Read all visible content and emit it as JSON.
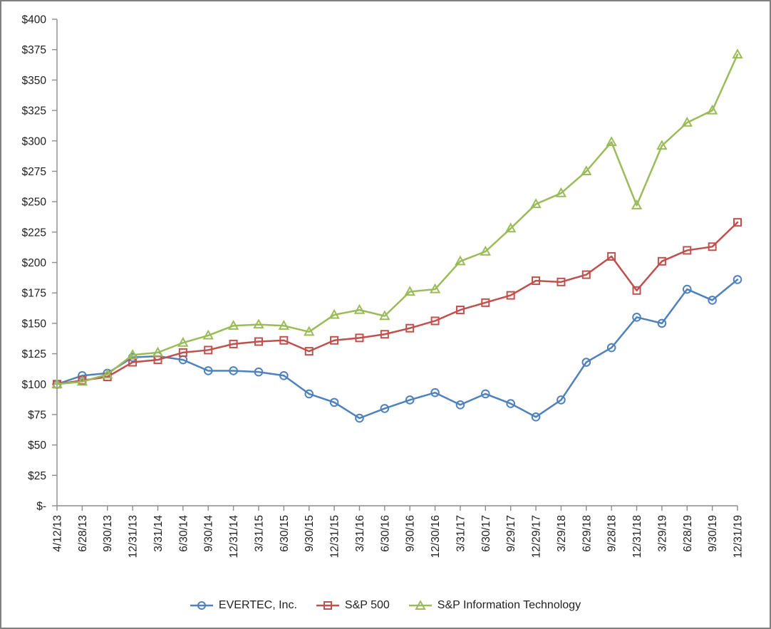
{
  "chart_data": {
    "type": "line",
    "title": "",
    "legend_position": "bottom",
    "grid": false,
    "x_labels": [
      "4/12/13",
      "6/28/13",
      "9/30/13",
      "12/31/13",
      "3/31/14",
      "6/30/14",
      "9/30/14",
      "12/31/14",
      "3/31/15",
      "6/30/15",
      "9/30/15",
      "12/31/15",
      "3/31/16",
      "6/30/16",
      "9/30/16",
      "12/30/16",
      "3/31/17",
      "6/30/17",
      "9/29/17",
      "12/29/17",
      "3/29/18",
      "6/29/18",
      "9/28/18",
      "12/31/18",
      "3/29/19",
      "6/28/19",
      "9/30/19",
      "12/31/19"
    ],
    "y_axis": {
      "min": 0,
      "max": 400,
      "step": 25,
      "tick_labels": [
        "$-",
        "$25",
        "$50",
        "$75",
        "$100",
        "$125",
        "$150",
        "$175",
        "$200",
        "$225",
        "$250",
        "$275",
        "$300",
        "$325",
        "$350",
        "$375",
        "$400"
      ]
    },
    "series": [
      {
        "name": "EVERTEC, Inc.",
        "marker": "circle",
        "color": "#4F81BD",
        "values": [
          100,
          107,
          109,
          122,
          123,
          120,
          111,
          111,
          110,
          107,
          92,
          85,
          72,
          80,
          87,
          93,
          83,
          92,
          84,
          73,
          87,
          118,
          130,
          155,
          150,
          178,
          169,
          186
        ]
      },
      {
        "name": "S&P 500",
        "marker": "square",
        "color": "#C0504D",
        "values": [
          100,
          103,
          106,
          118,
          120,
          126,
          128,
          133,
          135,
          136,
          127,
          136,
          138,
          141,
          146,
          152,
          161,
          167,
          173,
          185,
          184,
          190,
          205,
          177,
          201,
          210,
          213,
          233
        ]
      },
      {
        "name": "S&P Information Technology",
        "marker": "triangle",
        "color": "#9BBB59",
        "values": [
          100,
          102,
          108,
          124,
          126,
          134,
          140,
          148,
          149,
          148,
          143,
          157,
          161,
          156,
          176,
          178,
          201,
          209,
          228,
          248,
          257,
          275,
          299,
          247,
          296,
          315,
          325,
          371
        ]
      }
    ]
  }
}
